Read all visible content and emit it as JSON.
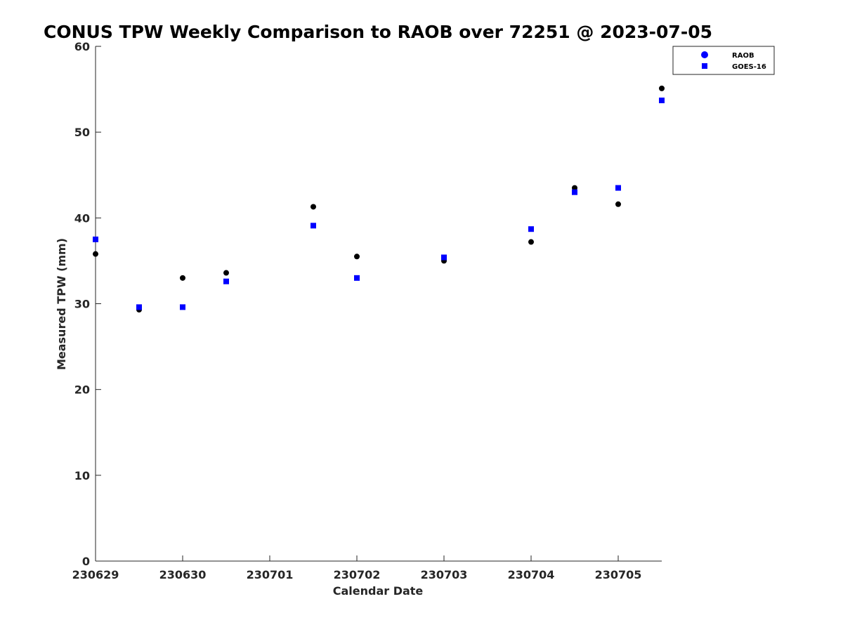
{
  "chart_data": {
    "type": "scatter",
    "title": "CONUS TPW Weekly Comparison to RAOB over 72251 @ 2023-07-05",
    "xlabel": "Calendar Date",
    "ylabel": "Measured TPW (mm)",
    "xlim": [
      0,
      6.5
    ],
    "ylim": [
      0,
      60
    ],
    "xticks": [
      0,
      1,
      2,
      3,
      4,
      5,
      6
    ],
    "xtick_labels": [
      "230629",
      "230630",
      "230701",
      "230702",
      "230703",
      "230704",
      "230705"
    ],
    "yticks": [
      0,
      10,
      20,
      30,
      40,
      50,
      60
    ],
    "ytick_labels": [
      "0",
      "10",
      "20",
      "30",
      "40",
      "50",
      "60"
    ],
    "grid": false,
    "legend_position": "top-right",
    "series": [
      {
        "name": "RAOB",
        "marker": "circle",
        "color": "#000000",
        "legend_color": "#0000ff",
        "x": [
          0,
          0.5,
          1,
          1.5,
          2.5,
          3,
          4,
          5,
          5.5,
          6,
          6.5
        ],
        "y": [
          35.8,
          29.3,
          33.0,
          33.6,
          41.3,
          35.5,
          35.0,
          37.2,
          43.5,
          41.6,
          55.1
        ]
      },
      {
        "name": "GOES-16",
        "marker": "square",
        "color": "#0000ff",
        "legend_color": "#0000ff",
        "x": [
          0,
          0.5,
          1,
          1.5,
          2.5,
          3,
          4,
          5,
          5.5,
          6,
          6.5
        ],
        "y": [
          37.5,
          29.6,
          29.6,
          32.6,
          39.1,
          33.0,
          35.4,
          38.7,
          43.0,
          43.5,
          53.7
        ]
      }
    ]
  }
}
